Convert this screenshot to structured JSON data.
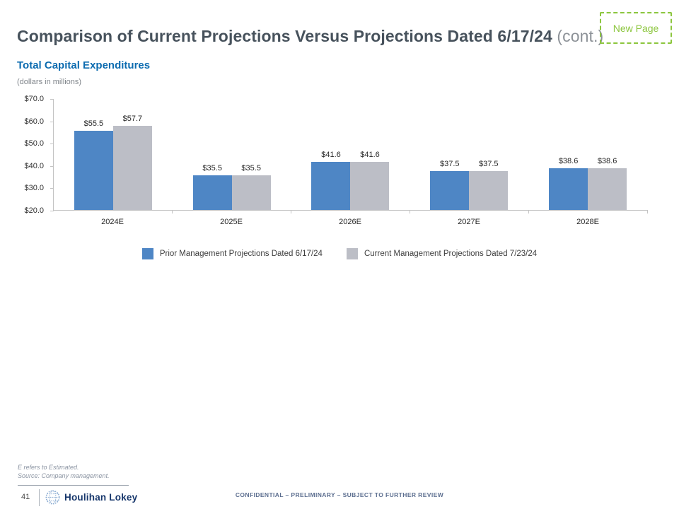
{
  "page": {
    "title": "Comparison of Current Projections Versus Projections Dated 6/17/24",
    "title_suffix": "(cont.)",
    "new_page_label": "New Page",
    "subtitle": "Total Capital Expenditures",
    "units_note": "(dollars in millions)"
  },
  "chart_data": {
    "type": "bar",
    "title": "Total Capital Expenditures",
    "units": "dollars in millions",
    "categories": [
      "2024E",
      "2025E",
      "2026E",
      "2027E",
      "2028E"
    ],
    "series": [
      {
        "name": "Prior Management Projections Dated 6/17/24",
        "color": "#4E86C5",
        "values": [
          55.5,
          35.5,
          41.6,
          37.5,
          38.6
        ]
      },
      {
        "name": "Current Management Projections Dated 7/23/24",
        "color": "#BCBEC6",
        "values": [
          57.7,
          35.5,
          41.6,
          37.5,
          38.6
        ]
      }
    ],
    "value_prefix": "$",
    "y_ticks": [
      "$70.0",
      "$60.0",
      "$50.0",
      "$40.0",
      "$30.0",
      "$20.0"
    ],
    "ylim": [
      20,
      70
    ],
    "grid": false,
    "legend_position": "bottom"
  },
  "footnotes": [
    "E refers to Estimated.",
    "Source: Company management."
  ],
  "footer": {
    "page_number": "41",
    "logo_text": "Houlihan Lokey",
    "confidential": "CONFIDENTIAL – PRELIMINARY – SUBJECT TO FURTHER REVIEW"
  },
  "colors": {
    "accent_green": "#8CC63E",
    "subtitle_blue": "#0D6CB0",
    "bar_blue": "#4E86C5",
    "bar_gray": "#BCBEC6",
    "logo_navy": "#16366B",
    "confidential_blue": "#5D6F90",
    "axis_gray": "#C3C3C3"
  }
}
